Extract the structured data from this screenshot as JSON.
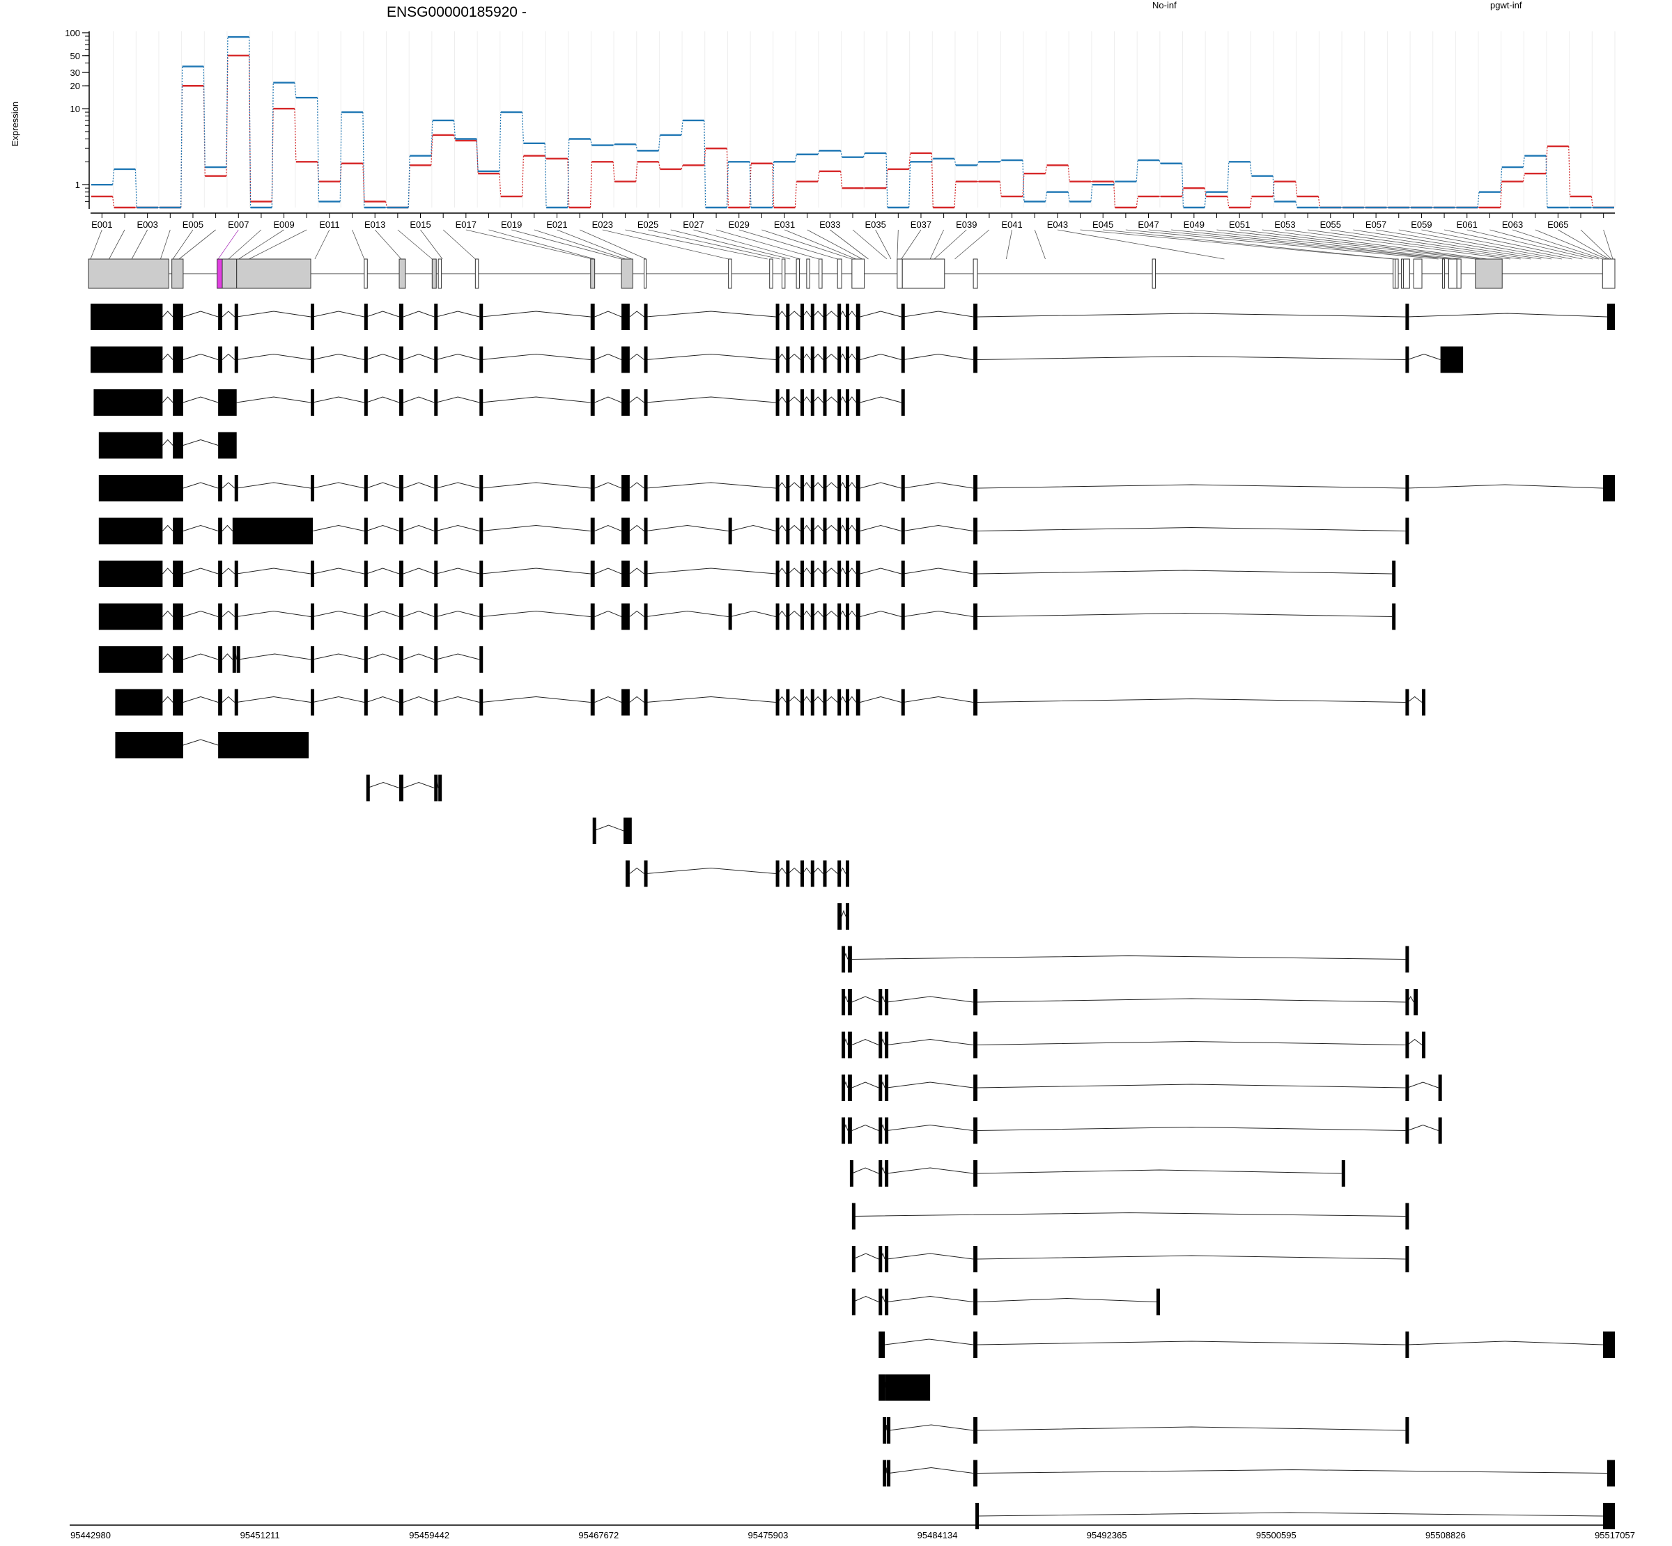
{
  "chart_data": {
    "type": "line",
    "title": "ENSG00000185920 -",
    "ylabel": "Expression",
    "xlabel": "",
    "yscale": "log",
    "ylim": [
      0.5,
      100
    ],
    "yticks": [
      1,
      10,
      20,
      30,
      50,
      100
    ],
    "grid": true,
    "legend_placement": "top",
    "exon_labels": [
      "E001",
      "E003",
      "E005",
      "E007",
      "E009",
      "E011",
      "E013",
      "E015",
      "E017",
      "E019",
      "E021",
      "E023",
      "E025",
      "E027",
      "E029",
      "E031",
      "E033",
      "E035",
      "E037",
      "E039",
      "E041",
      "E043",
      "E045",
      "E047",
      "E049",
      "E051",
      "E053",
      "E055",
      "E057",
      "E059",
      "E061",
      "E063",
      "E065"
    ],
    "genomic_ticks": [
      "95442980",
      "95451211",
      "95459442",
      "95467672",
      "95475903",
      "95484134",
      "95492365",
      "95500595",
      "95508826",
      "95517057"
    ],
    "series": [
      {
        "name": "No-inf",
        "color": "#d62728",
        "values": [
          0.7,
          0.5,
          0.5,
          0.5,
          20,
          1.3,
          50,
          0.6,
          10,
          2,
          1.1,
          1.9,
          0.6,
          0.5,
          1.8,
          4.5,
          3.8,
          1.4,
          0.7,
          2.4,
          2.2,
          0.5,
          2,
          1.1,
          2,
          1.6,
          1.8,
          3,
          0.5,
          1.9,
          0.5,
          1.1,
          1.5,
          0.9,
          0.9,
          1.6,
          2.6,
          0.5,
          1.1,
          1.1,
          0.7,
          1.4,
          1.8,
          1.1,
          1.1,
          0.5,
          0.7,
          0.7,
          0.9,
          0.7,
          0.5,
          0.7,
          1.1,
          0.7,
          0.5,
          0.5,
          0.5,
          0.5,
          0.5,
          0.5,
          0.5,
          0.5,
          1.1,
          1.4,
          3.2,
          0.7,
          0.5
        ]
      },
      {
        "name": "pgwt-inf",
        "color": "#1f77b4",
        "values": [
          1,
          1.6,
          0.5,
          0.5,
          36,
          1.7,
          88,
          0.5,
          22,
          14,
          0.6,
          9,
          0.5,
          0.5,
          2.4,
          7,
          4,
          1.5,
          9,
          3.5,
          0.5,
          4,
          3.3,
          3.4,
          2.8,
          4.5,
          7,
          0.5,
          2,
          0.5,
          2,
          2.5,
          2.8,
          2.3,
          2.6,
          0.5,
          2,
          2.2,
          1.8,
          2,
          2.1,
          0.6,
          0.8,
          0.6,
          1,
          1.1,
          2.1,
          1.9,
          0.5,
          0.8,
          2,
          1.3,
          0.6,
          0.5,
          0.5,
          0.5,
          0.5,
          0.5,
          0.5,
          0.5,
          0.5,
          0.8,
          1.7,
          2.4,
          0.5,
          0.5,
          0.5
        ]
      }
    ]
  }
}
